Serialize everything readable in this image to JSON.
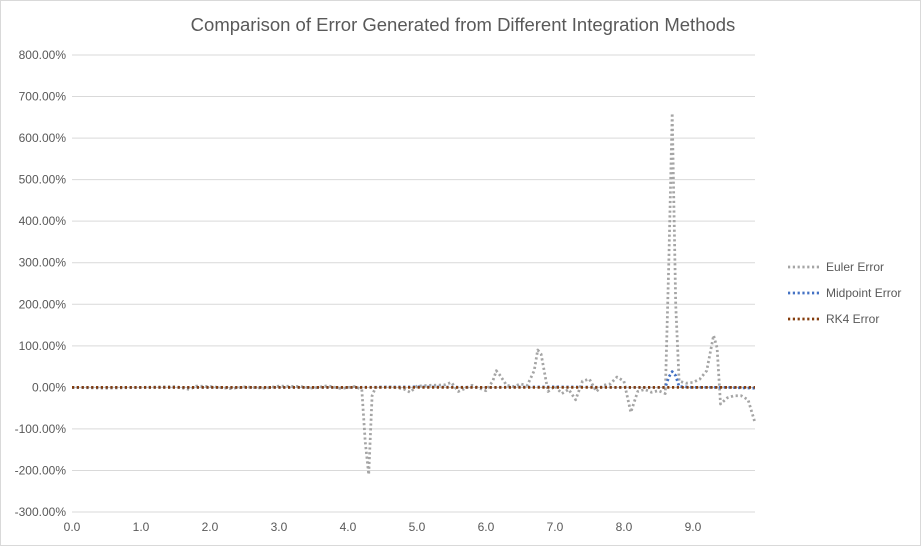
{
  "chart_data": {
    "type": "line",
    "title": "Comparison of Error Generated from Different Integration Methods",
    "xlabel": "",
    "ylabel": "",
    "xlim": [
      0,
      9.9
    ],
    "ylim": [
      -300,
      800
    ],
    "y_ticks": [
      -300,
      -200,
      -100,
      0,
      100,
      200,
      300,
      400,
      500,
      600,
      700,
      800
    ],
    "y_tick_labels": [
      "-300.00%",
      "-200.00%",
      "-100.00%",
      "0.00%",
      "100.00%",
      "200.00%",
      "300.00%",
      "400.00%",
      "500.00%",
      "600.00%",
      "700.00%",
      "800.00%"
    ],
    "x_ticks": [
      0,
      1,
      2,
      3,
      4,
      5,
      6,
      7,
      8,
      9
    ],
    "x_tick_labels": [
      "0.0",
      "1.0",
      "2.0",
      "3.0",
      "4.0",
      "5.0",
      "6.0",
      "7.0",
      "8.0",
      "9.0"
    ],
    "grid": "horizontal",
    "legend_position": "right",
    "series": [
      {
        "name": "Euler Error",
        "color": "#a5a5a5",
        "style": "dotted",
        "x": [
          0.0,
          0.5,
          1.0,
          1.5,
          1.7,
          1.8,
          2.0,
          2.3,
          2.5,
          2.8,
          3.0,
          3.3,
          3.5,
          3.7,
          3.9,
          4.1,
          4.2,
          4.25,
          4.3,
          4.35,
          4.4,
          4.6,
          4.8,
          4.9,
          5.0,
          5.2,
          5.4,
          5.5,
          5.6,
          5.8,
          6.0,
          6.1,
          6.15,
          6.2,
          6.3,
          6.4,
          6.5,
          6.6,
          6.7,
          6.75,
          6.8,
          6.9,
          7.0,
          7.1,
          7.2,
          7.3,
          7.4,
          7.5,
          7.6,
          7.7,
          7.8,
          7.9,
          8.0,
          8.1,
          8.2,
          8.3,
          8.4,
          8.5,
          8.6,
          8.65,
          8.7,
          8.75,
          8.8,
          8.9,
          9.0,
          9.1,
          9.2,
          9.3,
          9.35,
          9.4,
          9.5,
          9.6,
          9.7,
          9.8,
          9.9
        ],
        "y": [
          0,
          -2,
          0,
          2,
          -5,
          3,
          2,
          -3,
          1,
          -2,
          3,
          2,
          -2,
          4,
          -3,
          2,
          -5,
          -130,
          -210,
          -20,
          0,
          1,
          -3,
          -12,
          3,
          5,
          6,
          12,
          -10,
          5,
          -8,
          15,
          40,
          30,
          5,
          2,
          8,
          5,
          40,
          90,
          80,
          -10,
          3,
          -15,
          -5,
          -30,
          15,
          20,
          -10,
          5,
          8,
          25,
          15,
          -60,
          -10,
          -5,
          -12,
          -8,
          -15,
          300,
          660,
          200,
          15,
          10,
          12,
          20,
          40,
          125,
          95,
          -40,
          -25,
          -20,
          -20,
          -30,
          -85
        ]
      },
      {
        "name": "Midpoint Error",
        "color": "#4472c4",
        "style": "dotted",
        "x": [
          0.0,
          1.0,
          2.0,
          3.0,
          4.0,
          5.0,
          6.0,
          7.0,
          8.0,
          8.5,
          8.6,
          8.65,
          8.7,
          8.75,
          8.8,
          9.0,
          9.5,
          9.9
        ],
        "y": [
          0,
          0,
          0,
          0,
          0,
          1,
          0,
          1,
          0,
          0,
          0,
          25,
          38,
          28,
          2,
          0,
          0,
          -2
        ]
      },
      {
        "name": "RK4 Error",
        "color": "#843c0c",
        "style": "dotted",
        "x": [
          0.0,
          1.0,
          2.0,
          3.0,
          4.0,
          5.0,
          6.0,
          7.0,
          8.0,
          9.0,
          9.9
        ],
        "y": [
          0,
          0,
          0,
          0,
          0,
          0,
          0,
          0,
          0,
          0,
          0
        ]
      }
    ]
  }
}
